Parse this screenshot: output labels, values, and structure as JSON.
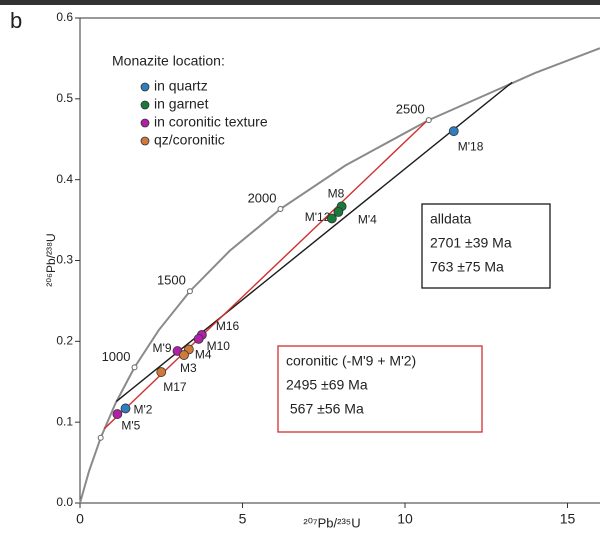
{
  "chart_data": {
    "type": "concordia",
    "panel_label": "b",
    "x_label": "²⁰⁷Pb/²³⁵U",
    "y_label": "²⁰⁶Pb/²³⁸U",
    "xlim": [
      0,
      16
    ],
    "ylim": [
      0,
      0.6
    ],
    "xticks": [
      0,
      5,
      10,
      15
    ],
    "yticks": [
      {
        "value": 0,
        "label": "0.0"
      },
      0.1,
      0.2,
      0.3,
      0.4,
      0.5,
      0.6
    ],
    "concordia": {
      "color": "#8a8a8a",
      "x": [
        0,
        0.2792,
        0.6362,
        1.093,
        1.6774,
        2.4249,
        3.3812,
        4.6043,
        6.1689,
        8.1701,
        10.73,
        14.004,
        16.0
      ],
      "y": [
        0,
        0.03954,
        0.08065,
        0.12338,
        0.1678,
        0.21398,
        0.26198,
        0.31189,
        0.36377,
        0.4177,
        0.4737,
        0.532,
        0.5626
      ]
    },
    "age_markers": {
      "labels": [
        null,
        "1000",
        "1500",
        "2000",
        "2500"
      ],
      "x": [
        0.6362,
        1.6774,
        3.3812,
        6.1689,
        10.73
      ],
      "y": [
        0.08065,
        0.1678,
        0.26198,
        0.36377,
        0.4737
      ]
    },
    "discordia": [
      {
        "color": "#1a1a1a",
        "x": [
          1.1198,
          13.298
        ],
        "y": [
          0.12566,
          0.5204
        ]
      },
      {
        "color": "#d03030",
        "x": [
          0.7479,
          10.673
        ],
        "y": [
          0.09194,
          0.4726
        ]
      }
    ],
    "legend_title": "Monazite location:",
    "series": [
      {
        "name": "in quartz",
        "color": "#2f7fc0",
        "labels": [
          "M'18",
          "M'2"
        ],
        "x": [
          11.5,
          1.4
        ],
        "y": [
          0.46,
          0.117
        ]
      },
      {
        "name": "in garnet",
        "color": "#1a7a3a",
        "labels": [
          "M8",
          "M'12",
          "M'4"
        ],
        "x": [
          8.05,
          7.95,
          7.75
        ],
        "y": [
          0.367,
          0.36,
          0.352
        ]
      },
      {
        "name": "in coronitic texture",
        "color": "#b020a8",
        "labels": [
          "M16",
          "M10",
          "M'9",
          "M'5"
        ],
        "x": [
          3.75,
          3.65,
          3.0,
          1.15
        ],
        "y": [
          0.208,
          0.203,
          0.188,
          0.11
        ]
      },
      {
        "name": "qz/coronitic",
        "color": "#d07a3a",
        "labels": [
          "M4",
          "M3",
          "M17"
        ],
        "x": [
          3.35,
          3.2,
          2.5
        ],
        "y": [
          0.19,
          0.183,
          0.162
        ]
      }
    ],
    "annotations": [
      {
        "color": "#1a1a1a",
        "lines": [
          "alldata",
          "2701 ±39 Ma",
          "763 ±75 Ma"
        ]
      },
      {
        "color": "#d03030",
        "lines": [
          "coronitic (-M'9 + M'2)",
          "2495 ±69 Ma",
          " 567 ±56 Ma"
        ]
      }
    ]
  }
}
